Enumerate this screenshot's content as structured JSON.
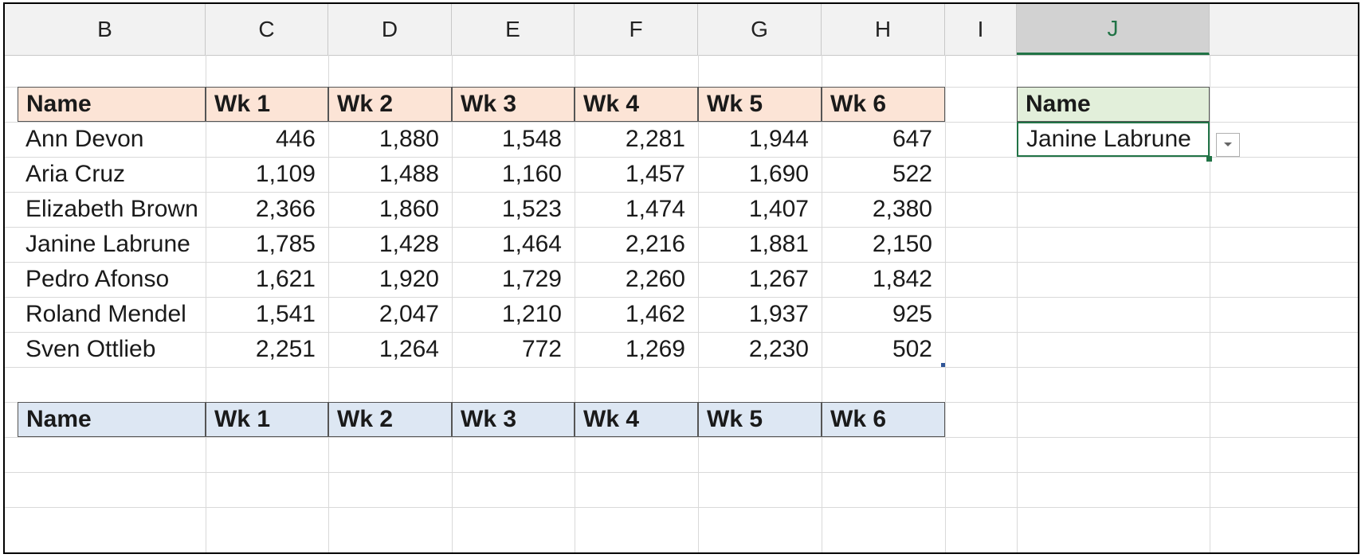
{
  "columns": [
    "B",
    "C",
    "D",
    "E",
    "F",
    "G",
    "H",
    "I",
    "J"
  ],
  "selected_column": "J",
  "top_table": {
    "headers": [
      "Name",
      "Wk 1",
      "Wk 2",
      "Wk 3",
      "Wk 4",
      "Wk 5",
      "Wk 6"
    ],
    "rows": [
      [
        "Ann Devon",
        "446",
        "1,880",
        "1,548",
        "2,281",
        "1,944",
        "647"
      ],
      [
        "Aria Cruz",
        "1,109",
        "1,488",
        "1,160",
        "1,457",
        "1,690",
        "522"
      ],
      [
        "Elizabeth Brown",
        "2,366",
        "1,860",
        "1,523",
        "1,474",
        "1,407",
        "2,380"
      ],
      [
        "Janine Labrune",
        "1,785",
        "1,428",
        "1,464",
        "2,216",
        "1,881",
        "2,150"
      ],
      [
        "Pedro Afonso",
        "1,621",
        "1,920",
        "1,729",
        "2,260",
        "1,267",
        "1,842"
      ],
      [
        "Roland Mendel",
        "1,541",
        "2,047",
        "1,210",
        "1,462",
        "1,937",
        "925"
      ],
      [
        "Sven Ottlieb",
        "2,251",
        "1,264",
        "772",
        "1,269",
        "2,230",
        "502"
      ]
    ]
  },
  "bottom_table": {
    "headers": [
      "Name",
      "Wk 1",
      "Wk 2",
      "Wk 3",
      "Wk 4",
      "Wk 5",
      "Wk 6"
    ]
  },
  "lookup": {
    "header": "Name",
    "value": "Janine Labrune",
    "dropdown_icon": "chevron-down-icon"
  },
  "colors": {
    "orange_header": "#fce4d6",
    "blue_header": "#dde7f3",
    "green_header": "#e2efda",
    "selection_accent": "#217346"
  }
}
